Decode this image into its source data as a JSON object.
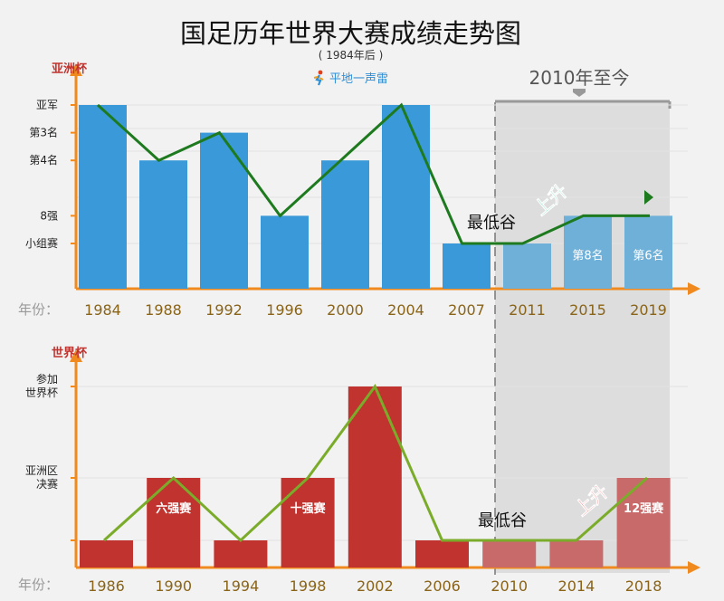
{
  "title": "国足历年世界大赛成绩走势图",
  "subtitle": "( 1984年后 )",
  "logo_text": "平地一声雷",
  "period_label": "2010年至今",
  "year_axis_label": "年份：",
  "colors": {
    "asia_bar": "#3a9ad9",
    "asia_bar_shaded": "#6fb0d9",
    "asia_line": "#1e7a1e",
    "wc_bar": "#c0332f",
    "wc_bar_shaded": "#c86a6a",
    "wc_line": "#7aac2a",
    "axis": "#f08a1e",
    "year_text": "#8a6418",
    "shade": "#d9d9d9",
    "up_asia": "#1fbf8a",
    "up_wc": "#e0201a"
  },
  "chart_data": [
    {
      "type": "bar",
      "name": "亚洲杯",
      "ylabel": "亚洲杯",
      "categories": [
        "1984",
        "1988",
        "1992",
        "1996",
        "2000",
        "2004",
        "2007",
        "2011",
        "2015",
        "2019"
      ],
      "y_levels": [
        "小组赛",
        "8强",
        "",
        "第4名",
        "第3名",
        "亚军"
      ],
      "y_tick_labels": [
        "小组赛",
        "8强",
        "第4名",
        "第3名",
        "亚军"
      ],
      "values": [
        5,
        3,
        4,
        1,
        3,
        5,
        0,
        0,
        1,
        1
      ],
      "bar_labels": [
        "",
        "",
        "",
        "",
        "",
        "",
        "",
        "",
        "第8名",
        "第6名"
      ],
      "line_values": [
        5,
        3,
        4,
        1,
        3,
        5,
        0,
        0,
        1,
        1
      ],
      "annotations": {
        "lowest": "最低谷",
        "up": "上升"
      },
      "shaded_from": "2011"
    },
    {
      "type": "bar",
      "name": "世界杯",
      "ylabel": "世界杯",
      "categories": [
        "1986",
        "1990",
        "1994",
        "1998",
        "2002",
        "2006",
        "2010",
        "2014",
        "2018"
      ],
      "y_tick_labels": [
        "亚洲区\n决赛",
        "参加\n世界杯"
      ],
      "values": [
        0,
        1,
        0,
        1,
        2,
        0,
        0,
        0,
        1
      ],
      "bar_labels": [
        "",
        "六强赛",
        "",
        "十强赛",
        "",
        "",
        "",
        "",
        "12强赛"
      ],
      "line_values": [
        0,
        1,
        0,
        1,
        2,
        0,
        0,
        0,
        1
      ],
      "annotations": {
        "lowest": "最低谷",
        "up": "上升"
      },
      "shaded_from": "2010"
    }
  ]
}
